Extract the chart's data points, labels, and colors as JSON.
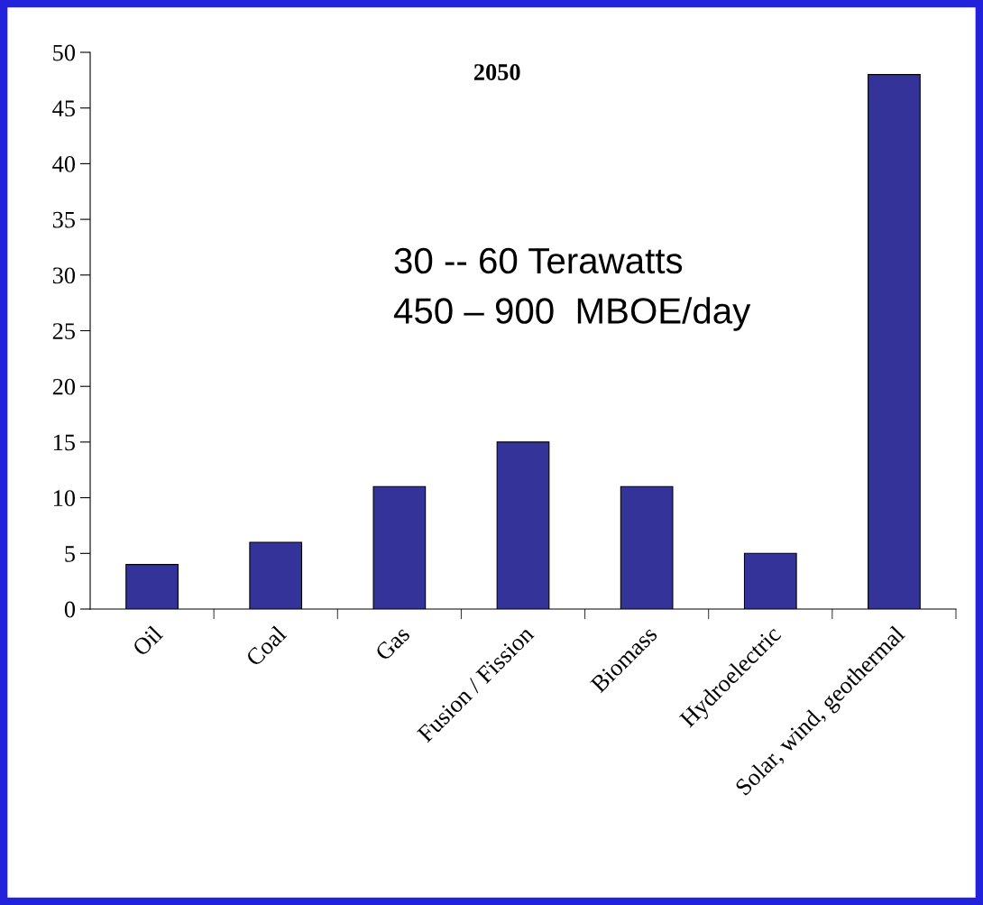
{
  "chart_data": {
    "type": "bar",
    "title": "2050",
    "categories": [
      "Oil",
      "Coal",
      "Gas",
      "Fusion / Fission",
      "Biomass",
      "Hydroelectric",
      "Solar, wind, geothermal"
    ],
    "values": [
      4,
      6,
      11,
      15,
      11,
      5,
      48
    ],
    "color": "#333399",
    "ylim": [
      0,
      50
    ],
    "yticks": [
      0,
      5,
      10,
      15,
      20,
      25,
      30,
      35,
      40,
      45,
      50
    ],
    "grid": false,
    "annotations": [
      "30 -- 60 Terawatts",
      "450 – 900  MBOE/day"
    ]
  }
}
